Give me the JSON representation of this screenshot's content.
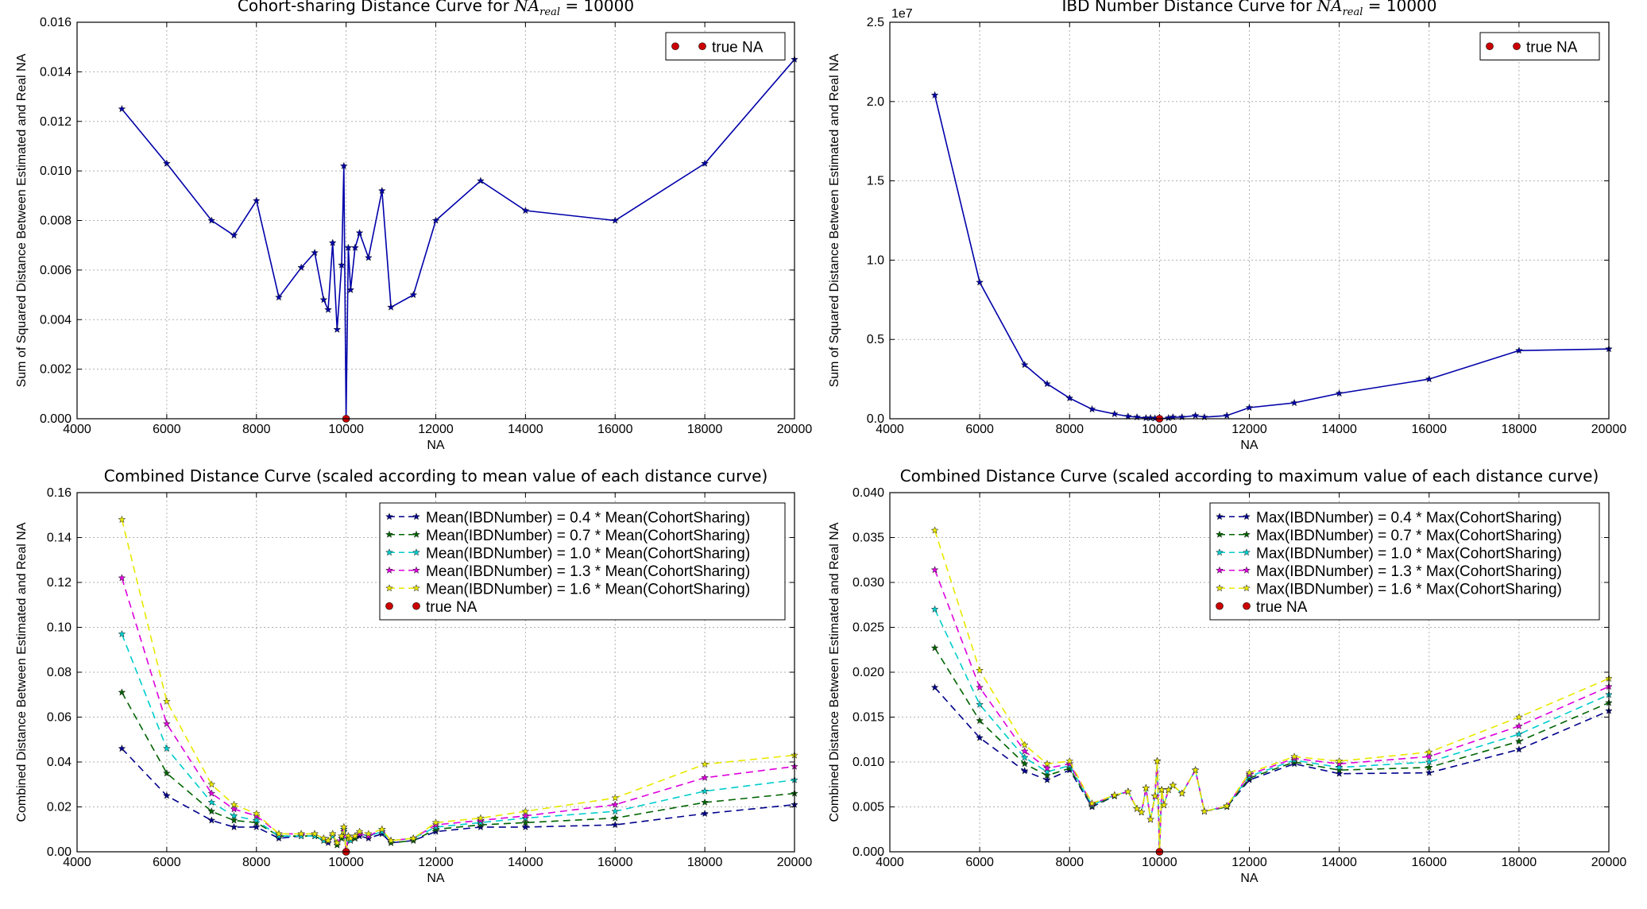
{
  "chart_data": [
    {
      "type": "line",
      "title": "Cohort-sharing Distance Curve for",
      "title_math": "NA",
      "title_math_sub": "real",
      "title_suffix": " = 10000",
      "xlabel": "NA",
      "ylabel": "Sum of Squared Distance Between Estimated and Real NA",
      "xlim": [
        4000,
        20000
      ],
      "ylim": [
        0,
        0.016
      ],
      "xticks": [
        4000,
        6000,
        8000,
        10000,
        12000,
        14000,
        16000,
        18000,
        20000
      ],
      "xtick_labels": [
        "4000",
        "6000",
        "8000",
        "10000",
        "12000",
        "14000",
        "16000",
        "18000",
        "20000"
      ],
      "yticks": [
        0,
        0.002,
        0.004,
        0.006,
        0.008,
        0.01,
        0.012,
        0.014,
        0.016
      ],
      "ytick_labels": [
        "0.000",
        "0.002",
        "0.004",
        "0.006",
        "0.008",
        "0.010",
        "0.012",
        "0.014",
        "0.016"
      ],
      "grid": true,
      "legend_position": "top-right",
      "series": [
        {
          "color": "#0000aa",
          "dash": "solid",
          "marker": "star",
          "x": [
            5000,
            6000,
            7000,
            7500,
            8000,
            8500,
            9000,
            9300,
            9500,
            9600,
            9700,
            9800,
            9900,
            9950,
            10000,
            10050,
            10100,
            10200,
            10300,
            10500,
            10800,
            11000,
            11500,
            12000,
            13000,
            14000,
            16000,
            18000,
            20000
          ],
          "y": [
            0.0125,
            0.0103,
            0.008,
            0.0074,
            0.0088,
            0.0049,
            0.0061,
            0.0067,
            0.0048,
            0.0044,
            0.0071,
            0.0036,
            0.0062,
            0.0102,
            0.0,
            0.0069,
            0.0052,
            0.0069,
            0.0075,
            0.0065,
            0.0092,
            0.0045,
            0.005,
            0.008,
            0.0096,
            0.0084,
            0.008,
            0.0103,
            0.0145
          ]
        }
      ],
      "true_na": {
        "name": "true NA",
        "x": 10000,
        "y": 0,
        "color": "#cc0000"
      }
    },
    {
      "type": "line",
      "title": "IBD Number Distance Curve for",
      "title_math": "NA",
      "title_math_sub": "real",
      "title_suffix": " = 10000",
      "xlabel": "NA",
      "ylabel": "Sum of Squared Distance Between Estimated and Real NA",
      "offset_label": "1e7",
      "xlim": [
        4000,
        20000
      ],
      "ylim": [
        0,
        2.5
      ],
      "xticks": [
        4000,
        6000,
        8000,
        10000,
        12000,
        14000,
        16000,
        18000,
        20000
      ],
      "xtick_labels": [
        "4000",
        "6000",
        "8000",
        "10000",
        "12000",
        "14000",
        "16000",
        "18000",
        "20000"
      ],
      "yticks": [
        0,
        0.5,
        1.0,
        1.5,
        2.0,
        2.5
      ],
      "ytick_labels": [
        "0.0",
        "0.5",
        "1.0",
        "1.5",
        "2.0",
        "2.5"
      ],
      "grid": true,
      "legend_position": "top-right",
      "series": [
        {
          "color": "#0000aa",
          "dash": "solid",
          "marker": "star",
          "x": [
            5000,
            6000,
            7000,
            7500,
            8000,
            8500,
            9000,
            9300,
            9500,
            9700,
            9800,
            9900,
            10000,
            10200,
            10300,
            10500,
            10800,
            11000,
            11500,
            12000,
            13000,
            14000,
            16000,
            18000,
            20000
          ],
          "y": [
            2.04,
            0.86,
            0.34,
            0.22,
            0.13,
            0.06,
            0.03,
            0.015,
            0.01,
            0.005,
            0.005,
            0.003,
            0.0,
            0.005,
            0.01,
            0.01,
            0.02,
            0.01,
            0.02,
            0.07,
            0.1,
            0.16,
            0.25,
            0.43,
            0.44
          ]
        }
      ],
      "true_na": {
        "name": "true NA",
        "x": 10000,
        "y": 0,
        "color": "#cc0000"
      }
    },
    {
      "type": "line",
      "title": "Combined Distance Curve (scaled according to mean value of each distance curve)",
      "xlabel": "NA",
      "ylabel": "Combined Distance Between Estimated and Real NA",
      "xlim": [
        4000,
        20000
      ],
      "ylim": [
        0,
        0.16
      ],
      "xticks": [
        4000,
        6000,
        8000,
        10000,
        12000,
        14000,
        16000,
        18000,
        20000
      ],
      "xtick_labels": [
        "4000",
        "6000",
        "8000",
        "10000",
        "12000",
        "14000",
        "16000",
        "18000",
        "20000"
      ],
      "yticks": [
        0,
        0.02,
        0.04,
        0.06,
        0.08,
        0.1,
        0.12,
        0.14,
        0.16
      ],
      "ytick_labels": [
        "0.00",
        "0.02",
        "0.04",
        "0.06",
        "0.08",
        "0.10",
        "0.12",
        "0.14",
        "0.16"
      ],
      "grid": true,
      "legend_position": "top-right",
      "x": [
        5000,
        6000,
        7000,
        7500,
        8000,
        8500,
        9000,
        9300,
        9500,
        9600,
        9700,
        9800,
        9900,
        9950,
        10000,
        10050,
        10100,
        10200,
        10300,
        10500,
        10800,
        11000,
        11500,
        12000,
        13000,
        14000,
        16000,
        18000,
        20000
      ],
      "series": [
        {
          "name": "Mean(IBDNumber) = 0.4 * Mean(CohortSharing)",
          "color": "#00008b",
          "dash": "dashed",
          "marker": "star",
          "y": [
            0.046,
            0.025,
            0.014,
            0.011,
            0.011,
            0.006,
            0.007,
            0.007,
            0.005,
            0.004,
            0.007,
            0.003,
            0.006,
            0.009,
            0.0,
            0.006,
            0.005,
            0.006,
            0.007,
            0.006,
            0.008,
            0.004,
            0.005,
            0.009,
            0.011,
            0.011,
            0.012,
            0.017,
            0.021
          ]
        },
        {
          "name": "Mean(IBDNumber) = 0.7 * Mean(CohortSharing)",
          "color": "#006400",
          "dash": "dashed",
          "marker": "star",
          "y": [
            0.071,
            0.035,
            0.018,
            0.014,
            0.013,
            0.007,
            0.007,
            0.007,
            0.005,
            0.005,
            0.007,
            0.003,
            0.006,
            0.01,
            0.0,
            0.006,
            0.005,
            0.006,
            0.008,
            0.007,
            0.009,
            0.004,
            0.005,
            0.01,
            0.012,
            0.013,
            0.015,
            0.022,
            0.026
          ]
        },
        {
          "name": "Mean(IBDNumber) = 1.0 * Mean(CohortSharing)",
          "color": "#00cdcd",
          "dash": "dashed",
          "marker": "star",
          "y": [
            0.097,
            0.046,
            0.022,
            0.016,
            0.014,
            0.007,
            0.007,
            0.007,
            0.005,
            0.005,
            0.007,
            0.004,
            0.007,
            0.01,
            0.0,
            0.007,
            0.005,
            0.007,
            0.008,
            0.007,
            0.009,
            0.005,
            0.006,
            0.011,
            0.013,
            0.015,
            0.018,
            0.027,
            0.032
          ]
        },
        {
          "name": "Mean(IBDNumber) = 1.3 * Mean(CohortSharing)",
          "color": "#dd00dd",
          "dash": "dashed",
          "marker": "star",
          "y": [
            0.122,
            0.057,
            0.026,
            0.019,
            0.016,
            0.008,
            0.008,
            0.008,
            0.006,
            0.005,
            0.008,
            0.004,
            0.007,
            0.011,
            0.0,
            0.007,
            0.006,
            0.007,
            0.008,
            0.007,
            0.01,
            0.005,
            0.006,
            0.012,
            0.014,
            0.016,
            0.021,
            0.033,
            0.038
          ]
        },
        {
          "name": "Mean(IBDNumber) = 1.6 * Mean(CohortSharing)",
          "color": "#e8e800",
          "dash": "dashed",
          "marker": "star",
          "y": [
            0.148,
            0.067,
            0.03,
            0.021,
            0.017,
            0.008,
            0.008,
            0.008,
            0.006,
            0.005,
            0.008,
            0.004,
            0.007,
            0.011,
            0.0,
            0.007,
            0.006,
            0.007,
            0.009,
            0.008,
            0.01,
            0.005,
            0.006,
            0.013,
            0.015,
            0.018,
            0.024,
            0.039,
            0.043
          ]
        }
      ],
      "true_na": {
        "name": "true NA",
        "x": 10000,
        "y": 0,
        "color": "#cc0000"
      }
    },
    {
      "type": "line",
      "title": "Combined Distance Curve (scaled according to maximum value of each distance curve)",
      "xlabel": "NA",
      "ylabel": "Combined Distance Between Estimated and Real NA",
      "xlim": [
        4000,
        20000
      ],
      "ylim": [
        0,
        0.04
      ],
      "xticks": [
        4000,
        6000,
        8000,
        10000,
        12000,
        14000,
        16000,
        18000,
        20000
      ],
      "xtick_labels": [
        "4000",
        "6000",
        "8000",
        "10000",
        "12000",
        "14000",
        "16000",
        "18000",
        "20000"
      ],
      "yticks": [
        0,
        0.005,
        0.01,
        0.015,
        0.02,
        0.025,
        0.03,
        0.035,
        0.04
      ],
      "ytick_labels": [
        "0.000",
        "0.005",
        "0.010",
        "0.015",
        "0.020",
        "0.025",
        "0.030",
        "0.035",
        "0.040"
      ],
      "grid": true,
      "legend_position": "top-right",
      "x": [
        5000,
        6000,
        7000,
        7500,
        8000,
        8500,
        9000,
        9300,
        9500,
        9600,
        9700,
        9800,
        9900,
        9950,
        10000,
        10050,
        10100,
        10200,
        10300,
        10500,
        10800,
        11000,
        11500,
        12000,
        13000,
        14000,
        16000,
        18000,
        20000
      ],
      "series": [
        {
          "name": "Max(IBDNumber) = 0.4 * Max(CohortSharing)",
          "color": "#00008b",
          "dash": "dashed",
          "marker": "star",
          "y": [
            0.0183,
            0.0127,
            0.009,
            0.008,
            0.0091,
            0.005,
            0.0062,
            0.0067,
            0.0048,
            0.0044,
            0.0071,
            0.0036,
            0.0062,
            0.0101,
            0.0,
            0.0069,
            0.0052,
            0.0069,
            0.0074,
            0.0065,
            0.0091,
            0.0045,
            0.005,
            0.008,
            0.0098,
            0.0087,
            0.0088,
            0.0114,
            0.0157
          ]
        },
        {
          "name": "Max(IBDNumber) = 0.7 * Max(CohortSharing)",
          "color": "#006400",
          "dash": "dashed",
          "marker": "star",
          "y": [
            0.0227,
            0.0146,
            0.0098,
            0.0085,
            0.0093,
            0.0051,
            0.0062,
            0.0067,
            0.0048,
            0.0044,
            0.0071,
            0.0036,
            0.0062,
            0.0101,
            0.0,
            0.0069,
            0.0052,
            0.0069,
            0.0074,
            0.0065,
            0.0091,
            0.0045,
            0.005,
            0.0082,
            0.01,
            0.0091,
            0.0094,
            0.0123,
            0.0166
          ]
        },
        {
          "name": "Max(IBDNumber) = 1.0 * Max(CohortSharing)",
          "color": "#00cdcd",
          "dash": "dashed",
          "marker": "star",
          "y": [
            0.027,
            0.0164,
            0.0105,
            0.0089,
            0.0096,
            0.0052,
            0.0063,
            0.0067,
            0.0048,
            0.0044,
            0.0071,
            0.0036,
            0.0062,
            0.0101,
            0.0,
            0.0069,
            0.0052,
            0.0069,
            0.0074,
            0.0065,
            0.0091,
            0.0045,
            0.0051,
            0.0084,
            0.0102,
            0.0094,
            0.01,
            0.0131,
            0.0175
          ]
        },
        {
          "name": "Max(IBDNumber) = 1.3 * Max(CohortSharing)",
          "color": "#dd00dd",
          "dash": "dashed",
          "marker": "star",
          "y": [
            0.0314,
            0.0183,
            0.0112,
            0.0093,
            0.0098,
            0.0053,
            0.0063,
            0.0067,
            0.0048,
            0.0044,
            0.0071,
            0.0036,
            0.0062,
            0.0101,
            0.0,
            0.0069,
            0.0052,
            0.0069,
            0.0074,
            0.0065,
            0.0091,
            0.0045,
            0.0051,
            0.0086,
            0.0104,
            0.0098,
            0.0106,
            0.014,
            0.0184
          ]
        },
        {
          "name": "Max(IBDNumber) = 1.6 * Max(CohortSharing)",
          "color": "#e8e800",
          "dash": "dashed",
          "marker": "star",
          "y": [
            0.0358,
            0.0202,
            0.0119,
            0.0098,
            0.0101,
            0.0054,
            0.0063,
            0.0067,
            0.0048,
            0.0044,
            0.0071,
            0.0036,
            0.0062,
            0.0101,
            0.0,
            0.0069,
            0.0052,
            0.0069,
            0.0074,
            0.0065,
            0.0091,
            0.0045,
            0.0051,
            0.0088,
            0.0106,
            0.0101,
            0.0111,
            0.015,
            0.0193
          ]
        }
      ],
      "true_na": {
        "name": "true NA",
        "x": 10000,
        "y": 0,
        "color": "#cc0000"
      }
    }
  ]
}
